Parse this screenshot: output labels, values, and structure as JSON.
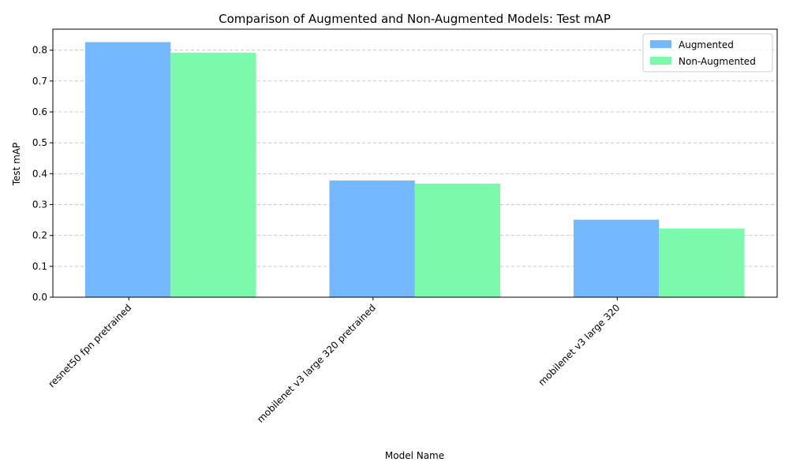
{
  "chart_data": {
    "type": "bar",
    "title": "Comparison of Augmented and Non-Augmented Models: Test mAP",
    "xlabel": "Model Name",
    "ylabel": "Test mAP",
    "categories": [
      "resnet50 fpn pretrained",
      "mobilenet v3 large 320 pretrained",
      "mobilenet v3 large 320"
    ],
    "series": [
      {
        "name": "Augmented",
        "values": [
          0.826,
          0.378,
          0.251
        ],
        "color": "#74b9ff"
      },
      {
        "name": "Non-Augmented",
        "values": [
          0.792,
          0.368,
          0.222
        ],
        "color": "#7bfaab"
      }
    ],
    "ylim": [
      0,
      0.868
    ],
    "yticks": [
      "0.0",
      "0.1",
      "0.2",
      "0.3",
      "0.4",
      "0.5",
      "0.6",
      "0.7",
      "0.8"
    ],
    "grid": "y dashed",
    "legend_position": "top-right"
  }
}
